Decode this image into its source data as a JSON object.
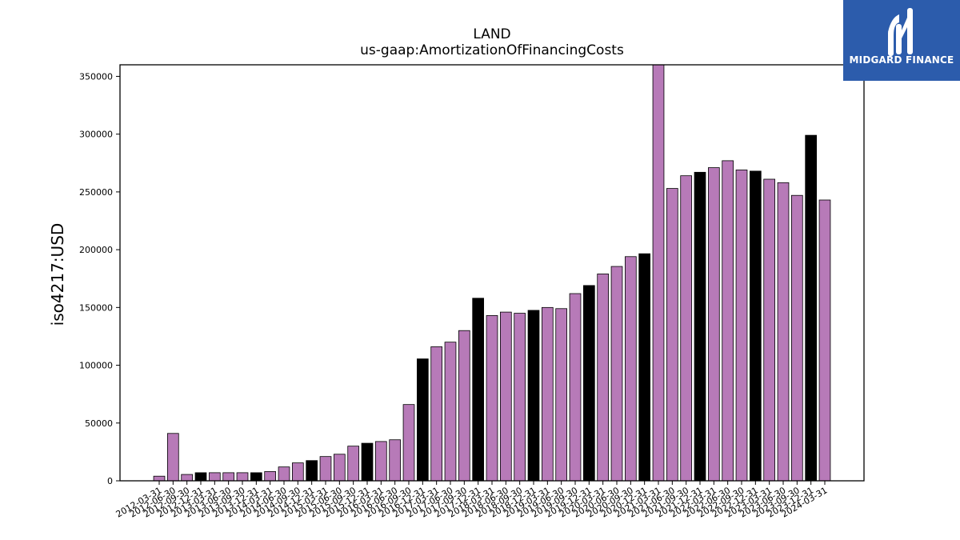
{
  "chart_data": {
    "type": "bar",
    "title": "LAND",
    "subtitle": "us-gaap:AmortizationOfFinancingCosts",
    "xlabel": "",
    "ylabel": "iso4217:USD",
    "ylim": [
      0,
      360000
    ],
    "yticks": [
      0,
      50000,
      100000,
      150000,
      200000,
      250000,
      300000,
      350000
    ],
    "grid": false,
    "colors": {
      "default": "#b77ab8",
      "highlight": "#000000",
      "edge": "#000000"
    },
    "categories": [
      "2012-03-31",
      "2012-06-30",
      "2012-09-30",
      "2012-12-31",
      "2013-03-31",
      "2013-06-30",
      "2013-09-30",
      "2013-12-31",
      "2014-03-31",
      "2014-06-30",
      "2014-09-30",
      "2014-12-31",
      "2015-03-31",
      "2015-06-30",
      "2015-09-30",
      "2015-12-31",
      "2016-03-31",
      "2016-06-30",
      "2016-09-30",
      "2016-12-31",
      "2017-03-31",
      "2017-06-30",
      "2017-09-30",
      "2017-12-31",
      "2018-03-31",
      "2018-06-30",
      "2018-09-30",
      "2018-12-31",
      "2019-03-31",
      "2019-06-30",
      "2019-09-30",
      "2019-12-31",
      "2020-03-31",
      "2020-06-30",
      "2020-09-30",
      "2020-12-31",
      "2021-03-31",
      "2021-06-30",
      "2021-09-30",
      "2021-12-31",
      "2022-03-31",
      "2022-06-30",
      "2022-09-30",
      "2022-12-31",
      "2023-03-31",
      "2023-06-30",
      "2023-09-30",
      "2023-12-31",
      "2024-03-31"
    ],
    "values": [
      4000,
      41000,
      5500,
      7000,
      7000,
      7000,
      7000,
      7000,
      8000,
      12000,
      15500,
      17500,
      21000,
      23000,
      30000,
      32500,
      34000,
      35500,
      66000,
      105500,
      116000,
      120000,
      130000,
      158000,
      143000,
      146000,
      145000,
      147500,
      150000,
      149000,
      162000,
      169000,
      179000,
      185500,
      194000,
      196500,
      360000,
      253000,
      264000,
      267000,
      271000,
      277000,
      269000,
      268000,
      261000,
      258000,
      247000,
      299000,
      243000
    ],
    "highlight": [
      false,
      false,
      false,
      true,
      false,
      false,
      false,
      true,
      false,
      false,
      false,
      true,
      false,
      false,
      false,
      true,
      false,
      false,
      false,
      true,
      false,
      false,
      false,
      true,
      false,
      false,
      false,
      true,
      false,
      false,
      false,
      true,
      false,
      false,
      false,
      true,
      false,
      false,
      false,
      true,
      false,
      false,
      false,
      true,
      false,
      false,
      false,
      true,
      false
    ]
  },
  "logo": {
    "text": "MIDGARD FINANCE",
    "bg_color": "#2c5cac",
    "icon": "midgard-logo-icon"
  }
}
